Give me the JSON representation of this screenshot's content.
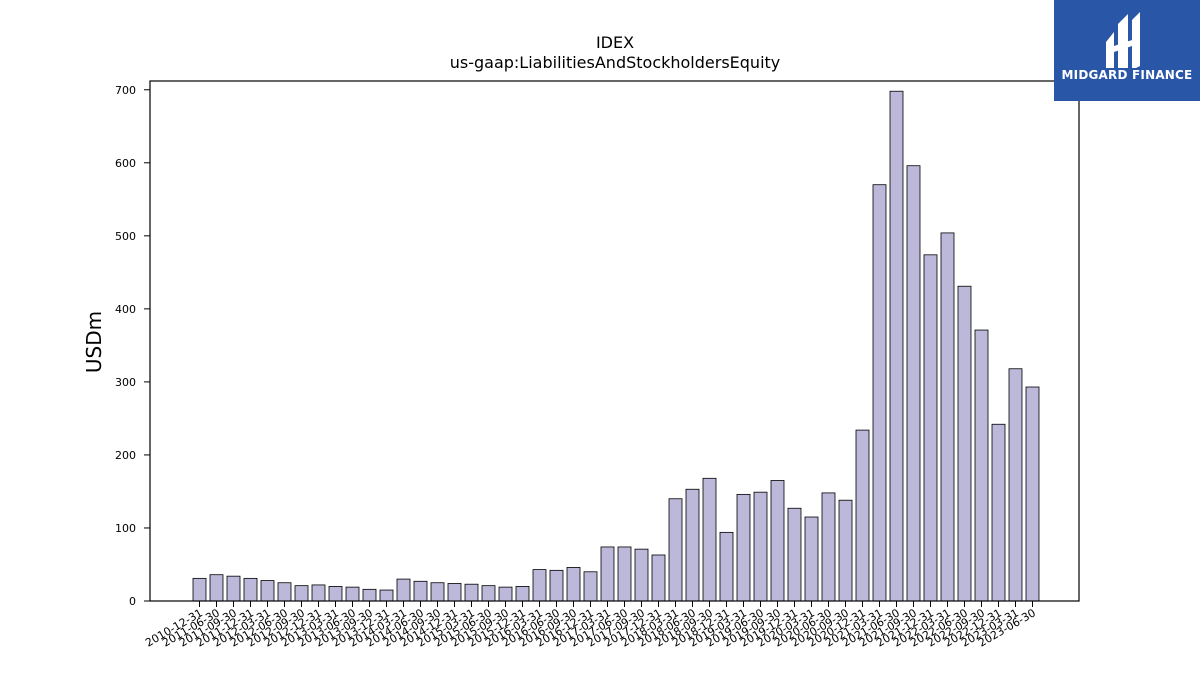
{
  "brand": {
    "name": "MIDGARD FINANCE",
    "bg_color": "#2a56a8",
    "text_color": "#ffffff"
  },
  "chart_data": {
    "type": "bar",
    "title": "IDEX",
    "subtitle": "us-gaap:LiabilitiesAndStockholdersEquity",
    "xlabel": "",
    "ylabel": "USDm",
    "ylim": [
      0,
      712
    ],
    "yticks": [
      0,
      100,
      200,
      300,
      400,
      500,
      600,
      700
    ],
    "bar_color": "#bcb8da",
    "bar_edge_color": "#000000",
    "grid": false,
    "legend": "none",
    "categories": [
      "2010-12-31",
      "2011-06-30",
      "2011-09-30",
      "2011-12-31",
      "2012-03-31",
      "2012-06-30",
      "2012-09-30",
      "2012-12-31",
      "2013-03-31",
      "2013-06-30",
      "2013-09-30",
      "2013-12-31",
      "2014-03-31",
      "2014-06-30",
      "2014-09-30",
      "2014-12-31",
      "2015-03-31",
      "2015-06-30",
      "2015-09-30",
      "2015-12-31",
      "2016-03-31",
      "2016-06-30",
      "2016-09-30",
      "2016-12-31",
      "2017-03-31",
      "2017-06-30",
      "2017-09-30",
      "2017-12-31",
      "2018-03-31",
      "2018-06-30",
      "2018-09-30",
      "2018-12-31",
      "2019-03-31",
      "2019-06-30",
      "2019-09-30",
      "2019-12-31",
      "2020-03-31",
      "2020-06-30",
      "2020-09-30",
      "2020-12-31",
      "2021-03-31",
      "2021-06-30",
      "2021-09-30",
      "2021-12-31",
      "2022-03-31",
      "2022-06-30",
      "2022-09-30",
      "2022-12-31",
      "2023-03-31",
      "2023-06-30"
    ],
    "values": [
      31,
      36,
      34,
      31,
      28,
      25,
      21,
      22,
      20,
      19,
      16,
      15,
      30,
      27,
      25,
      24,
      23,
      21,
      19,
      20,
      43,
      42,
      46,
      40,
      74,
      74,
      71,
      63,
      140,
      153,
      168,
      94,
      146,
      149,
      165,
      127,
      115,
      148,
      138,
      234,
      570,
      698,
      596,
      474,
      504,
      431,
      371,
      242,
      318,
      293
    ]
  }
}
